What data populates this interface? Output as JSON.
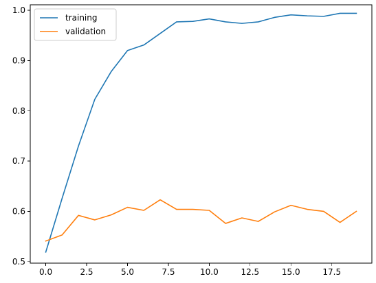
{
  "chart_data": {
    "type": "line",
    "title": "",
    "xlabel": "",
    "ylabel": "",
    "xlim": [
      -0.95,
      19.95
    ],
    "ylim": [
      0.497,
      1.011
    ],
    "x_ticks": [
      0.0,
      2.5,
      5.0,
      7.5,
      10.0,
      12.5,
      15.0,
      17.5
    ],
    "x_tick_labels": [
      "0.0",
      "2.5",
      "5.0",
      "7.5",
      "10.0",
      "12.5",
      "15.0",
      "17.5"
    ],
    "y_ticks": [
      0.5,
      0.6,
      0.7,
      0.8,
      0.9,
      1.0
    ],
    "y_tick_labels": [
      "0.5",
      "0.6",
      "0.7",
      "0.8",
      "0.9",
      "1.0"
    ],
    "grid": false,
    "legend": {
      "position": "top-left"
    },
    "x": [
      0,
      1,
      2,
      3,
      4,
      5,
      6,
      7,
      8,
      9,
      10,
      11,
      12,
      13,
      14,
      15,
      16,
      17,
      18,
      19
    ],
    "series": [
      {
        "name": "training",
        "color": "#1f77b4",
        "values": [
          0.519,
          0.626,
          0.73,
          0.823,
          0.878,
          0.92,
          0.931,
          0.954,
          0.977,
          0.978,
          0.983,
          0.977,
          0.974,
          0.977,
          0.986,
          0.991,
          0.989,
          0.988,
          0.994,
          0.994
        ]
      },
      {
        "name": "validation",
        "color": "#ff7f0e",
        "values": [
          0.541,
          0.553,
          0.592,
          0.583,
          0.593,
          0.608,
          0.602,
          0.623,
          0.604,
          0.604,
          0.602,
          0.576,
          0.587,
          0.58,
          0.599,
          0.612,
          0.604,
          0.6,
          0.578,
          0.6
        ]
      }
    ]
  }
}
